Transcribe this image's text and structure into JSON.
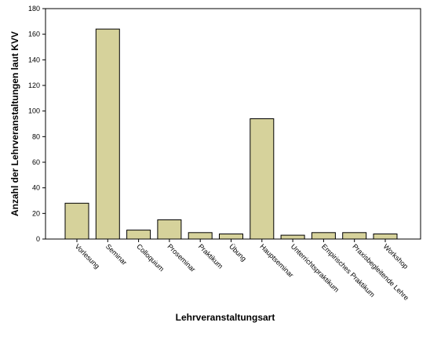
{
  "chart_data": {
    "type": "bar",
    "categories": [
      "Vorlesung",
      "Seminar",
      "Colloquium",
      "Proseminar",
      "Praktikum",
      "Übung",
      "Hauptseminar",
      "Unterrichtspraktikum",
      "Empirisches Praktikum",
      "Praxisbegleitende Lehre",
      "Workshop"
    ],
    "values": [
      28,
      164,
      7,
      15,
      5,
      4,
      94,
      3,
      5,
      5,
      4
    ],
    "title": "",
    "xlabel": "Lehrveranstaltungsart",
    "ylabel": "Anzahl der Lehrveranstaltungen laut KVV",
    "ylim": [
      0,
      180
    ],
    "yticks": [
      0,
      20,
      40,
      60,
      80,
      100,
      120,
      140,
      160,
      180
    ],
    "grid": false,
    "bar_color": "#d6d29b",
    "bar_stroke": "#000000"
  }
}
